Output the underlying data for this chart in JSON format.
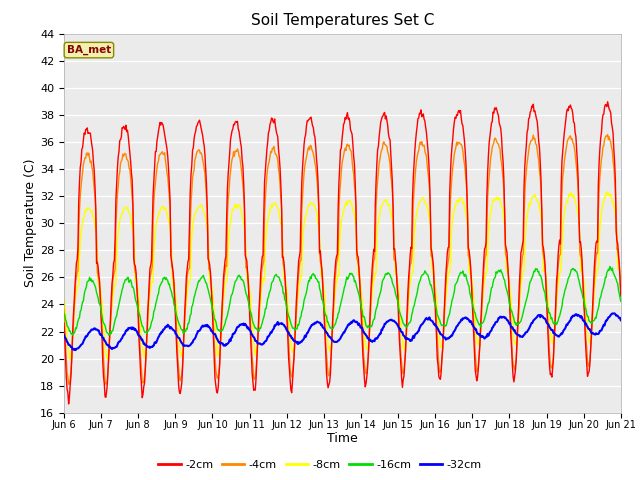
{
  "title": "Soil Temperatures Set C",
  "xlabel": "Time",
  "ylabel": "Soil Temperature (C)",
  "ylim": [
    16,
    44
  ],
  "yticks": [
    16,
    18,
    20,
    22,
    24,
    26,
    28,
    30,
    32,
    34,
    36,
    38,
    40,
    42,
    44
  ],
  "legend_labels": [
    "-2cm",
    "-4cm",
    "-8cm",
    "-16cm",
    "-32cm"
  ],
  "legend_colors": [
    "#ff0000",
    "#ff8800",
    "#ffff00",
    "#00dd00",
    "#0000ff"
  ],
  "watermark": "BA_met",
  "xtick_labels": [
    "Jun 6",
    "Jun 7",
    "Jun 8",
    "Jun 9",
    "Jun 10",
    "Jun 11",
    "Jun 12",
    "Jun 13",
    "Jun 14",
    "Jun 15",
    "Jun 16",
    "Jun 17",
    "Jun 18",
    "Jun 19",
    "Jun 20",
    "Jun 21"
  ],
  "days": 15,
  "pts_per_day": 48,
  "phase_2cm": 0.375,
  "phase_4cm": 0.385,
  "phase_8cm": 0.41,
  "phase_16cm": 0.47,
  "phase_32cm": 0.56,
  "mean_base_2cm": 27.0,
  "mean_base_4cm": 26.5,
  "mean_base_8cm": 25.5,
  "mean_base_16cm": 23.8,
  "mean_base_32cm": 21.4,
  "mean_trend_2cm": 0.12,
  "mean_trend_4cm": 0.1,
  "mean_trend_8cm": 0.08,
  "mean_trend_16cm": 0.06,
  "mean_trend_32cm": 0.08,
  "amp_2cm": 10.0,
  "amp_4cm": 8.5,
  "amp_8cm": 5.5,
  "amp_16cm": 2.0,
  "amp_32cm": 0.75,
  "sharp_factor": 2.5
}
